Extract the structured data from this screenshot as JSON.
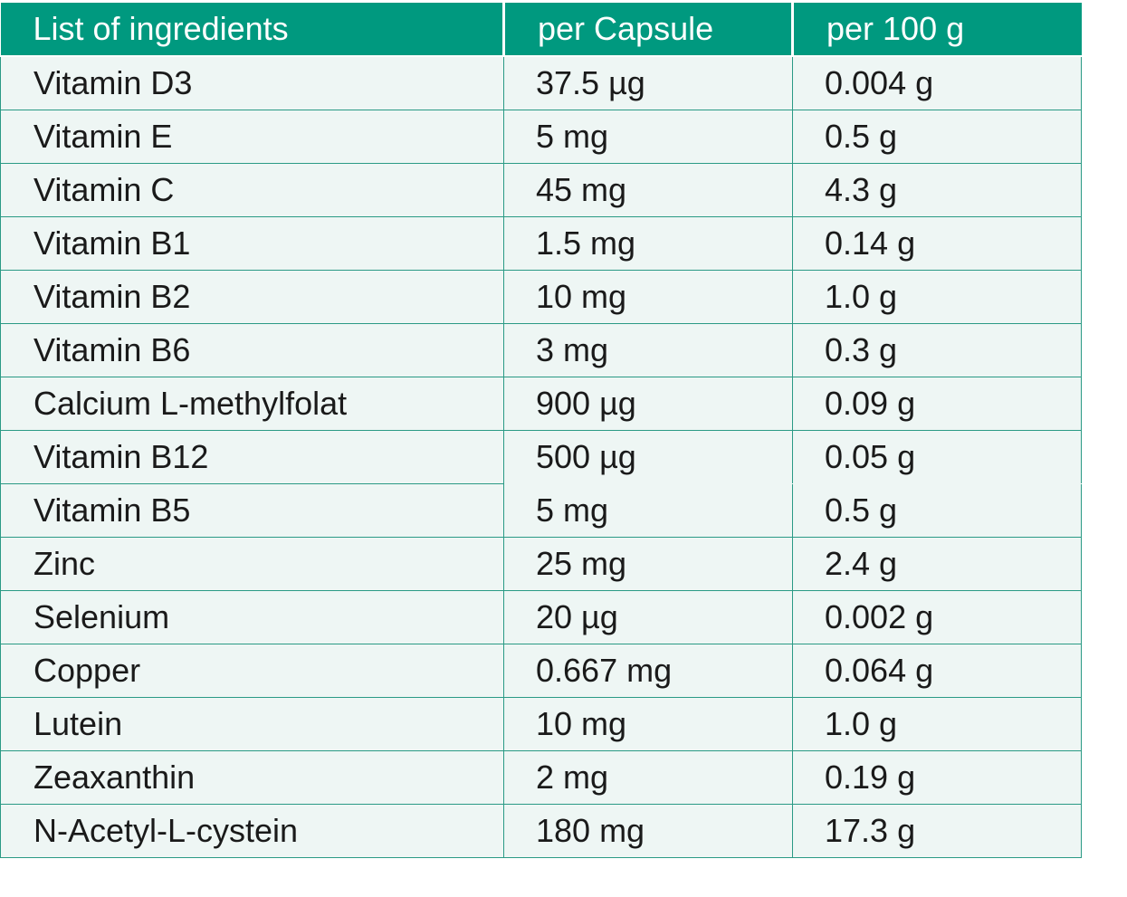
{
  "table": {
    "headers": [
      "List of ingredients",
      "per Capsule",
      "per 100 g"
    ],
    "rows": [
      {
        "ingredient": "Vitamin D3",
        "per_capsule": "37.5 µg",
        "per_100g": "0.004 g"
      },
      {
        "ingredient": "Vitamin E",
        "per_capsule": "5 mg",
        "per_100g": "0.5 g"
      },
      {
        "ingredient": "Vitamin C",
        "per_capsule": "45 mg",
        "per_100g": "4.3 g"
      },
      {
        "ingredient": "Vitamin B1",
        "per_capsule": "1.5 mg",
        "per_100g": "0.14 g"
      },
      {
        "ingredient": "Vitamin B2",
        "per_capsule": "10 mg",
        "per_100g": "1.0 g"
      },
      {
        "ingredient": "Vitamin B6",
        "per_capsule": "3 mg",
        "per_100g": "0.3 g"
      },
      {
        "ingredient": "Calcium L-methylfolat",
        "per_capsule": "900 µg",
        "per_100g": "0.09 g"
      },
      {
        "ingredient": "Vitamin B12",
        "per_capsule": "500 µg",
        "per_100g": "0.05 g"
      },
      {
        "ingredient": "Vitamin B5",
        "per_capsule": "5 mg",
        "per_100g": "0.5 g"
      },
      {
        "ingredient": "Zinc",
        "per_capsule": "25 mg",
        "per_100g": "2.4 g"
      },
      {
        "ingredient": "Selenium",
        "per_capsule": "20 µg",
        "per_100g": "0.002 g"
      },
      {
        "ingredient": "Copper",
        "per_capsule": "0.667 mg",
        "per_100g": "0.064 g"
      },
      {
        "ingredient": "Lutein",
        "per_capsule": "10 mg",
        "per_100g": "1.0 g"
      },
      {
        "ingredient": "Zeaxanthin",
        "per_capsule": "2 mg",
        "per_100g": "0.19 g"
      },
      {
        "ingredient": "N-Acetyl-L-cystein",
        "per_capsule": "180 mg",
        "per_100g": "17.3 g"
      }
    ]
  },
  "colors": {
    "header_bg": "#00997f",
    "header_text": "#ffffff",
    "cell_bg": "#eef6f4",
    "border": "#2a9a85"
  }
}
